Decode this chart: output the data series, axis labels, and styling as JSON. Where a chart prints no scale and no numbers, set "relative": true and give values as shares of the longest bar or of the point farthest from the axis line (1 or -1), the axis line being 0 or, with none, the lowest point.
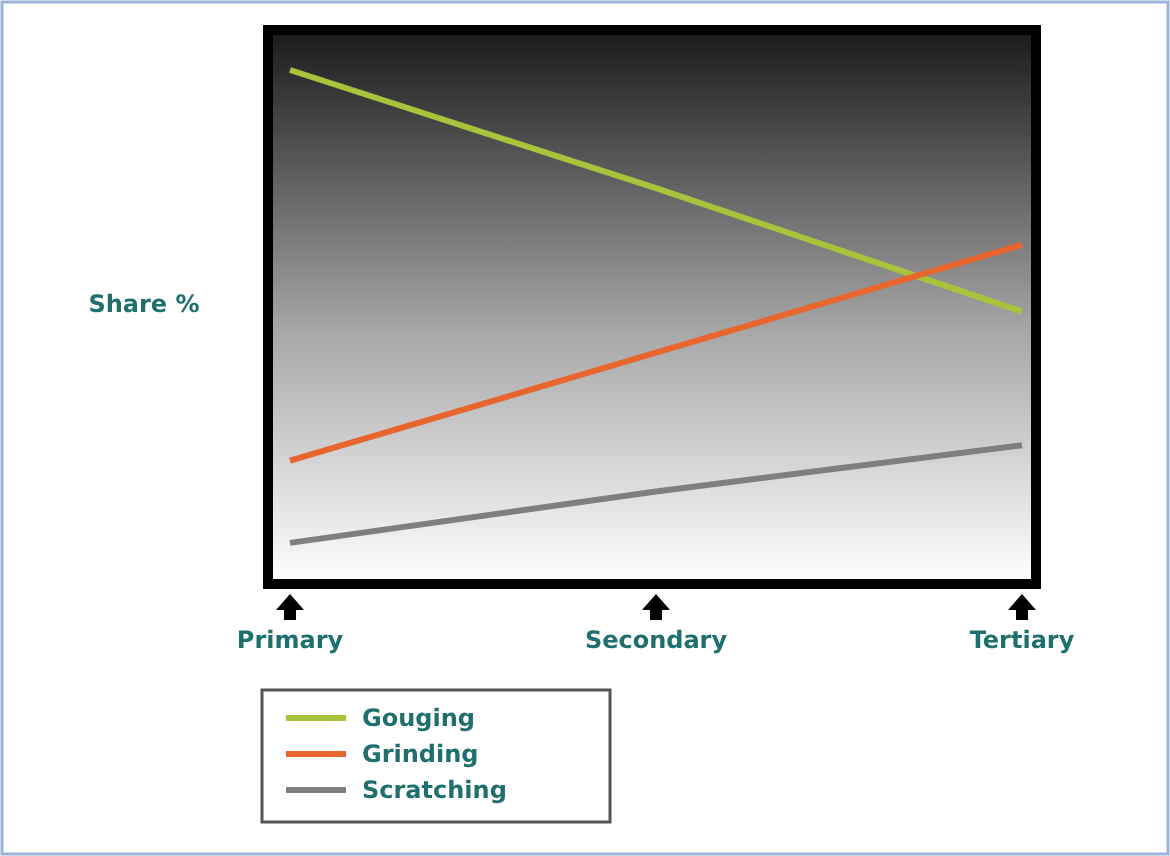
{
  "chart_data": {
    "type": "line",
    "ylabel": "Share %",
    "categories": [
      "Primary",
      "Secondary",
      "Tertiary"
    ],
    "relative": true,
    "legend": "bottom left",
    "series": [
      {
        "name": "Gouging",
        "color": "#a8c43a",
        "values": [
          1,
          0.77,
          0.53
        ]
      },
      {
        "name": "Grinding",
        "color": "#e8662e",
        "values": [
          0.24,
          0.45,
          0.66
        ]
      },
      {
        "name": "Scratching",
        "color": "#7f7f7f",
        "values": [
          0.08,
          0.18,
          0.27
        ]
      }
    ]
  }
}
